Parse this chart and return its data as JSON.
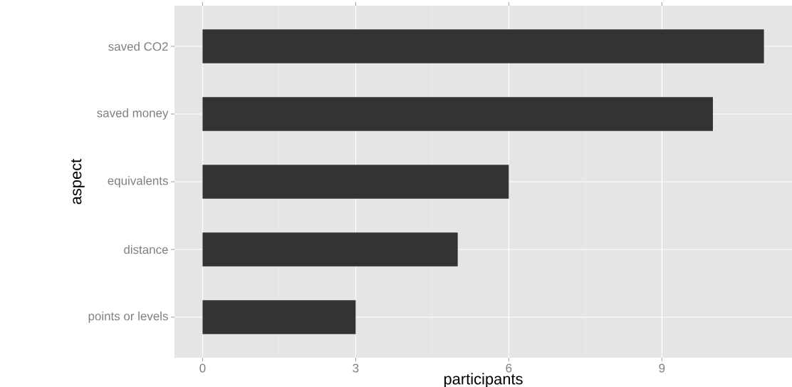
{
  "chart_data": {
    "type": "bar",
    "orientation": "horizontal",
    "categories": [
      "saved CO2",
      "saved money",
      "equivalents",
      "distance",
      "points or levels"
    ],
    "values": [
      11,
      10,
      6,
      5,
      3
    ],
    "color": "#333333",
    "xlabel": "participants",
    "ylabel": "aspect",
    "xlim": [
      -0.55,
      11.55
    ],
    "xticks": [
      0,
      3,
      6,
      9
    ],
    "grid": true
  }
}
